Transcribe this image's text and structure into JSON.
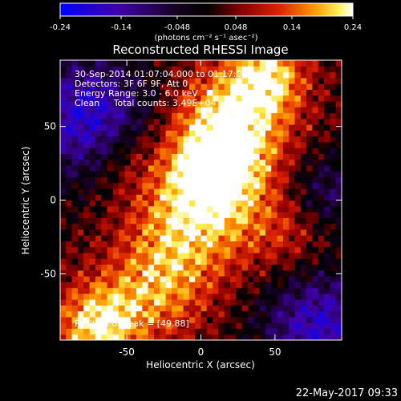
{
  "chart_data": {
    "type": "heatmap",
    "title": "Reconstructed RHESSI Image",
    "xlabel": "Heliocentric X (arcsec)",
    "ylabel": "Heliocentric Y (arcsec)",
    "xlim": [
      -95,
      95
    ],
    "ylim": [
      -95,
      95
    ],
    "xticks": [
      -50,
      0,
      50
    ],
    "yticks": [
      -50,
      0,
      50
    ],
    "colorbar": {
      "ticks": [
        "-0.24",
        "-0.14",
        "-0.048",
        "0.048",
        "0.14",
        "0.24"
      ],
      "tick_values": [
        -0.24,
        -0.14,
        -0.048,
        0.048,
        0.14,
        0.24
      ],
      "range": [
        -0.24,
        0.24
      ],
      "unit_label": "(photons cm⁻² s⁻¹ asec⁻²)"
    },
    "annotations": [
      "30-Sep-2014 01:07:04.000 to 01:17:04.000",
      "Detectors: 3F 6F 9F, Att 0",
      "Energy Range: 3.0 - 6.0 keV",
      "Clean     Total counts: 3.49E+04"
    ],
    "peak_label": "Position of Peak = [49,88]",
    "peak_position": [
      49,
      88
    ],
    "colors": {
      "low": "#0000ff",
      "zero": "#000000",
      "mid": "#cc0000",
      "high": "#ffffff"
    }
  },
  "footer": {
    "timestamp": "22-May-2017 09:33"
  }
}
